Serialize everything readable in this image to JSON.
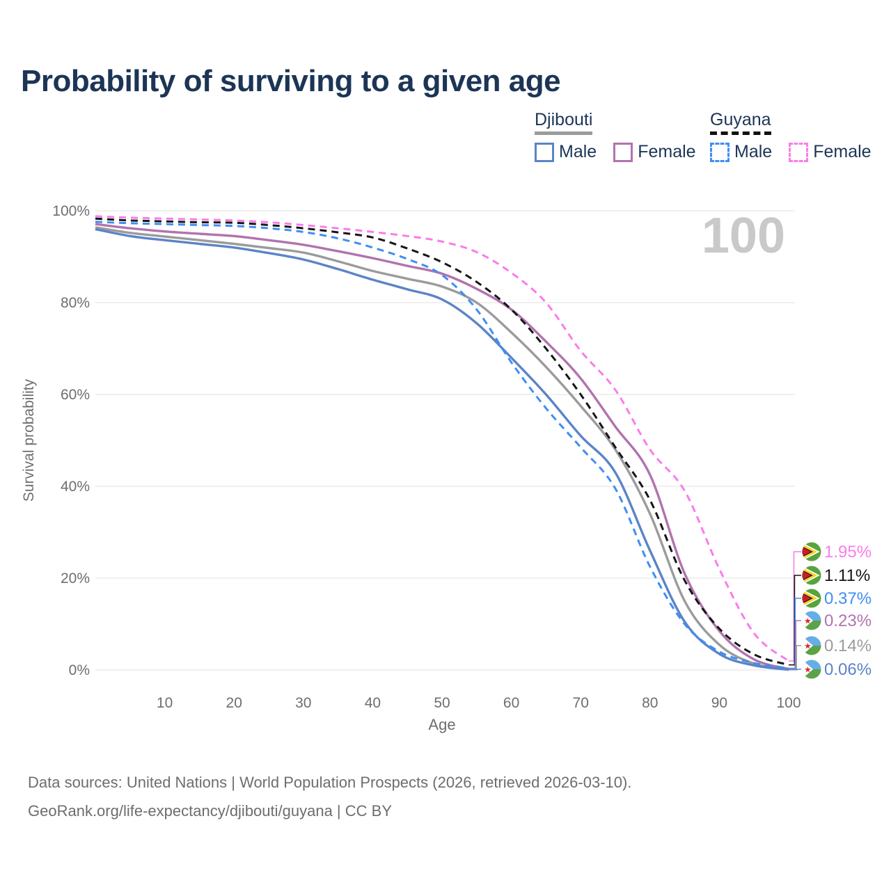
{
  "header": {
    "title": "Probability of surviving to a given age"
  },
  "legend": {
    "djibouti": {
      "title": "Djibouti",
      "male_label": "Male",
      "female_label": "Female"
    },
    "guyana": {
      "title": "Guyana",
      "male_label": "Male",
      "female_label": "Female"
    }
  },
  "watermark": "100",
  "chart_data": {
    "type": "line",
    "title": "Probability of surviving to a given age",
    "xlabel": "Age",
    "ylabel": "Survival probability",
    "xlim": [
      0,
      100
    ],
    "ylim": [
      0,
      100
    ],
    "xticks": [
      10,
      20,
      30,
      40,
      50,
      60,
      70,
      80,
      90,
      100
    ],
    "yticks": [
      {
        "value": 0,
        "label": "0%"
      },
      {
        "value": 20,
        "label": "20%"
      },
      {
        "value": 40,
        "label": "40%"
      },
      {
        "value": 60,
        "label": "60%"
      },
      {
        "value": 80,
        "label": "80%"
      },
      {
        "value": 100,
        "label": "100%"
      }
    ],
    "grid": "horizontal",
    "legend_position": "top-right",
    "x": [
      0,
      5,
      10,
      15,
      20,
      25,
      30,
      35,
      40,
      45,
      50,
      55,
      60,
      65,
      70,
      75,
      80,
      85,
      90,
      95,
      100
    ],
    "series": [
      {
        "id": "djibouti_total",
        "name": "Djibouti",
        "country": "Djibouti",
        "sex": "Total",
        "style": "solid",
        "color": "#9b9b9b",
        "flag": "djibouti",
        "values": [
          96.4,
          95.2,
          94.4,
          93.6,
          92.8,
          91.9,
          90.9,
          89.0,
          86.9,
          85.2,
          83.5,
          80.0,
          73.5,
          66.0,
          57.5,
          48.0,
          34.0,
          15.0,
          5.5,
          1.4,
          0.14
        ],
        "end_label": "0.14%"
      },
      {
        "id": "djibouti_female",
        "name": "Djibouti Female",
        "country": "Djibouti",
        "sex": "Female",
        "style": "solid",
        "color": "#b173ae",
        "flag": "djibouti",
        "values": [
          97.1,
          96.2,
          95.5,
          95.0,
          94.5,
          93.6,
          92.6,
          91.2,
          89.7,
          88.0,
          86.3,
          83.0,
          78.5,
          71.5,
          63.5,
          53.0,
          42.5,
          21.0,
          8.5,
          2.3,
          0.23
        ],
        "end_label": "0.23%"
      },
      {
        "id": "djibouti_male",
        "name": "Djibouti Male",
        "country": "Djibouti",
        "sex": "Male",
        "style": "solid",
        "color": "#5b84c7",
        "flag": "djibouti",
        "values": [
          96.0,
          94.5,
          93.6,
          92.8,
          92.0,
          90.8,
          89.4,
          87.3,
          85.0,
          82.9,
          80.7,
          75.5,
          68.0,
          60.0,
          51.0,
          43.0,
          26.0,
          10.5,
          3.5,
          1.0,
          0.06
        ],
        "end_label": "0.06%"
      },
      {
        "id": "guyana_total",
        "name": "Guyana",
        "country": "Guyana",
        "sex": "Total",
        "style": "dashed",
        "color": "#151515",
        "flag": "guyana",
        "values": [
          98.3,
          97.9,
          97.7,
          97.5,
          97.4,
          96.9,
          96.2,
          95.3,
          94.2,
          91.8,
          88.8,
          84.5,
          78.5,
          70.0,
          60.0,
          48.5,
          37.0,
          19.5,
          9.0,
          3.4,
          1.11
        ],
        "end_label": "1.11%"
      },
      {
        "id": "guyana_male",
        "name": "Guyana Male",
        "country": "Guyana",
        "sex": "Male",
        "style": "dashed",
        "color": "#3f8ef3",
        "flag": "guyana",
        "values": [
          97.6,
          97.3,
          97.1,
          96.9,
          96.7,
          96.2,
          95.4,
          94.0,
          92.0,
          89.5,
          86.0,
          78.5,
          67.0,
          57.0,
          48.5,
          39.5,
          22.5,
          10.0,
          4.0,
          1.5,
          0.37
        ],
        "end_label": "0.37%"
      },
      {
        "id": "guyana_female",
        "name": "Guyana Female",
        "country": "Guyana",
        "sex": "Female",
        "style": "dashed",
        "color": "#fb7cea",
        "flag": "guyana",
        "values": [
          98.8,
          98.5,
          98.3,
          98.1,
          97.9,
          97.5,
          96.9,
          96.2,
          95.4,
          94.5,
          93.3,
          91.0,
          86.5,
          80.0,
          69.5,
          61.0,
          48.0,
          39.0,
          22.0,
          8.0,
          1.95
        ],
        "end_label": "1.95%"
      }
    ]
  },
  "footer": {
    "line1": "Data sources: United Nations | World Population Prospects (2026, retrieved 2026-03-10).",
    "line2": "GeoRank.org/life-expectancy/djibouti/guyana | CC BY"
  }
}
